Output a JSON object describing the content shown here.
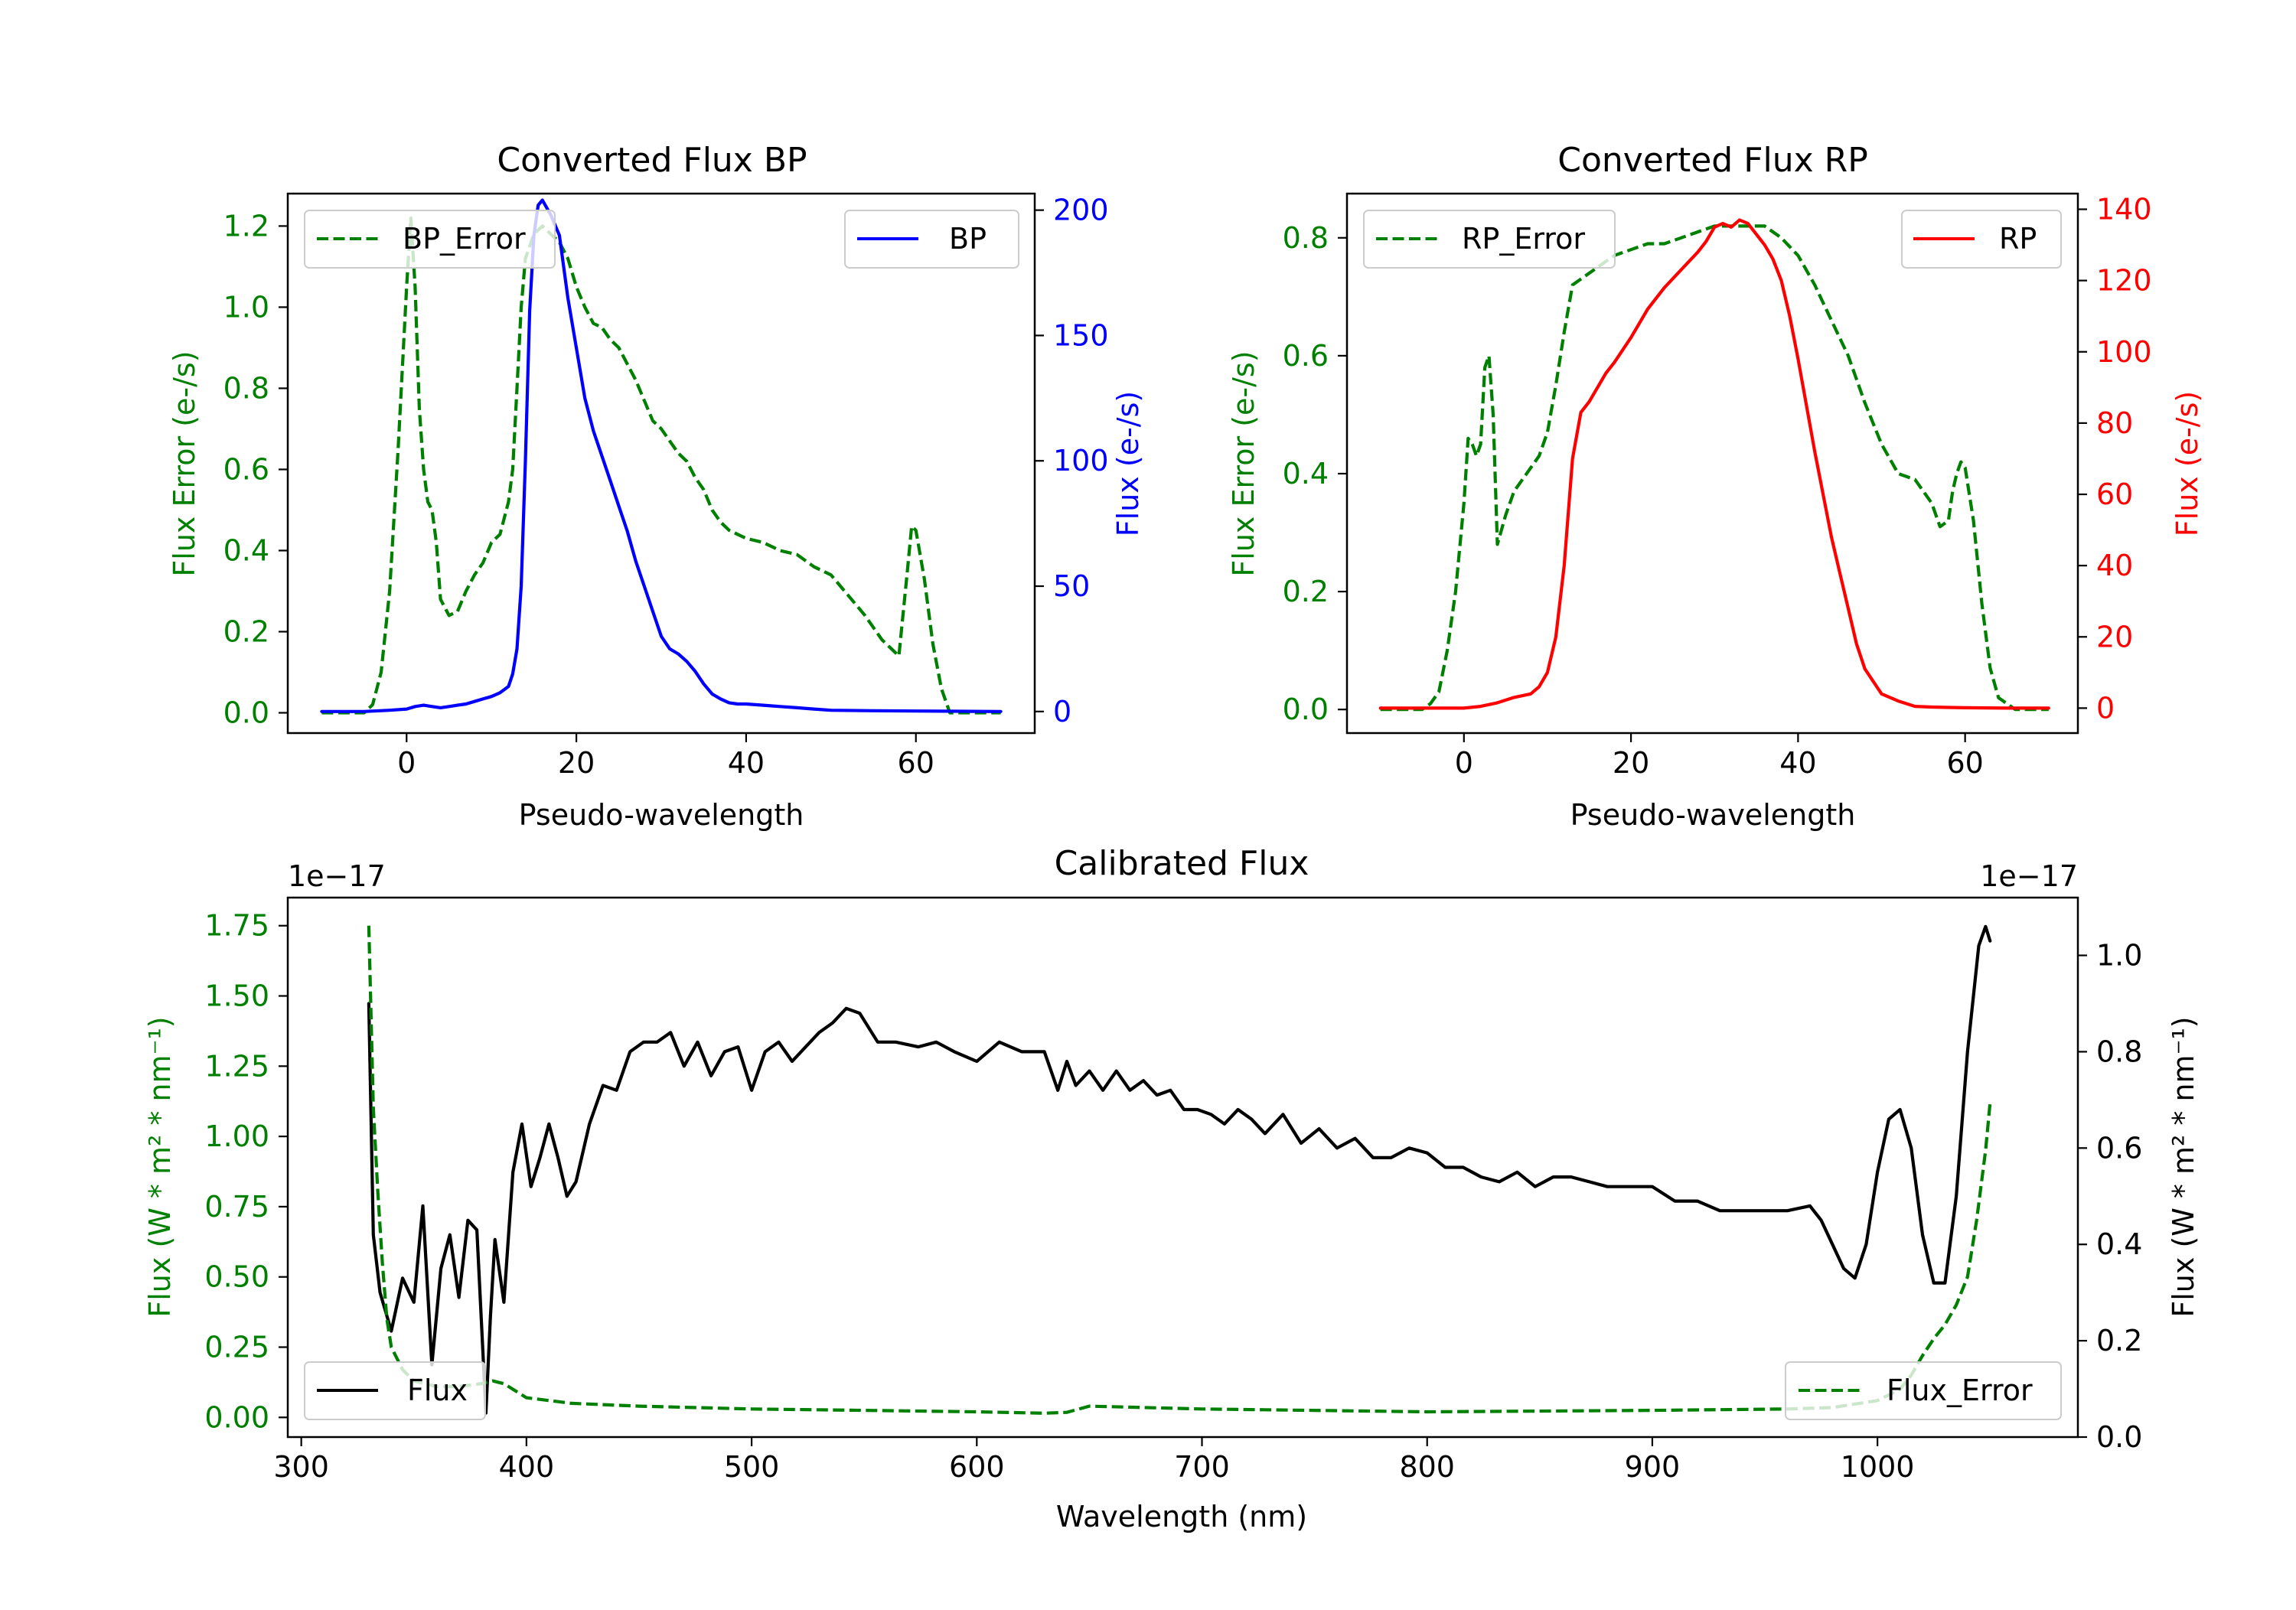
{
  "chart_data": [
    {
      "type": "line",
      "id": "bp",
      "title": "Converted Flux BP",
      "xlabel": "Pseudo-wavelength",
      "ylabel_left": "Flux Error (e-/s)",
      "ylabel_right": "Flux (e-/s)",
      "xlim": [
        -14,
        74
      ],
      "ylim_left": [
        -0.05,
        1.28
      ],
      "ylim_right": [
        -8.6,
        206.6
      ],
      "xticks": [
        0,
        20,
        40,
        60
      ],
      "yticks_left": [
        "0.0",
        "0.2",
        "0.4",
        "0.6",
        "0.8",
        "1.0",
        "1.2"
      ],
      "yticks_right": [
        "0",
        "50",
        "100",
        "150",
        "200"
      ],
      "legend_left": "top-left",
      "legend_right": "top-right",
      "colors": {
        "error": "#008000",
        "flux": "#0000ff"
      },
      "series": [
        {
          "name": "BP_Error",
          "axis": "left",
          "style": "dashed",
          "x": [
            -10,
            -5,
            -4,
            -3,
            -2,
            -1,
            0,
            0.5,
            1,
            1.5,
            2,
            2.5,
            3,
            3.5,
            4,
            5,
            6,
            7,
            8,
            9,
            10,
            11,
            12,
            12.5,
            13,
            13.5,
            14,
            15,
            16,
            17,
            18,
            19,
            20,
            21,
            22,
            23,
            24,
            25,
            26,
            27,
            28,
            29,
            30,
            31,
            32,
            33,
            34,
            35,
            36,
            37,
            38,
            39,
            40,
            42,
            44,
            46,
            48,
            50,
            52,
            54,
            56,
            57,
            58,
            59,
            59.5,
            60,
            61,
            62,
            63,
            64,
            66,
            68,
            70
          ],
          "values": [
            0,
            0,
            0.02,
            0.1,
            0.3,
            0.65,
            1.05,
            1.22,
            1.05,
            0.75,
            0.6,
            0.52,
            0.5,
            0.42,
            0.28,
            0.24,
            0.25,
            0.3,
            0.34,
            0.37,
            0.42,
            0.44,
            0.52,
            0.6,
            0.8,
            1.0,
            1.12,
            1.18,
            1.2,
            1.18,
            1.16,
            1.12,
            1.05,
            1.0,
            0.96,
            0.95,
            0.92,
            0.9,
            0.86,
            0.82,
            0.77,
            0.72,
            0.7,
            0.67,
            0.64,
            0.62,
            0.58,
            0.55,
            0.5,
            0.47,
            0.45,
            0.44,
            0.43,
            0.42,
            0.4,
            0.39,
            0.36,
            0.34,
            0.29,
            0.24,
            0.18,
            0.16,
            0.14,
            0.35,
            0.46,
            0.45,
            0.33,
            0.17,
            0.06,
            0,
            0,
            0,
            0
          ]
        },
        {
          "name": "BP",
          "axis": "right",
          "style": "solid",
          "x": [
            -10,
            -5,
            -2,
            0,
            1,
            2,
            3,
            4,
            5,
            6,
            7,
            8,
            9,
            10,
            11,
            12,
            12.5,
            13,
            13.5,
            14,
            14.5,
            15,
            15.5,
            16,
            17,
            18,
            19,
            20,
            21,
            22,
            23,
            24,
            25,
            26,
            27,
            28,
            29,
            30,
            31,
            32,
            33,
            34,
            35,
            36,
            37,
            38,
            39,
            40,
            42,
            44,
            46,
            48,
            50,
            55,
            60,
            65,
            70
          ],
          "values": [
            0,
            0,
            0.5,
            1,
            2,
            2.5,
            2,
            1.5,
            2,
            2.5,
            3,
            4,
            5,
            6,
            7.5,
            10,
            15,
            25,
            50,
            100,
            160,
            190,
            202,
            204,
            198,
            190,
            165,
            145,
            125,
            112,
            102,
            92,
            82,
            72,
            60,
            50,
            40,
            30,
            25,
            23,
            20,
            16,
            11,
            7,
            5,
            3.5,
            3,
            3,
            2.5,
            2,
            1.5,
            1,
            0.5,
            0.3,
            0.2,
            0.1,
            0
          ]
        }
      ]
    },
    {
      "type": "line",
      "id": "rp",
      "title": "Converted Flux RP",
      "xlabel": "Pseudo-wavelength",
      "ylabel_left": "Flux Error (e-/s)",
      "ylabel_right": "Flux (e-/s)",
      "xlim": [
        -14,
        73.5
      ],
      "ylim_left": [
        -0.04,
        0.875
      ],
      "ylim_right": [
        -7,
        144.4
      ],
      "xticks": [
        0,
        20,
        40,
        60
      ],
      "yticks_left": [
        "0.0",
        "0.2",
        "0.4",
        "0.6",
        "0.8"
      ],
      "yticks_right": [
        "0",
        "20",
        "40",
        "60",
        "80",
        "100",
        "120",
        "140"
      ],
      "legend_left": "top-left",
      "legend_right": "top-right",
      "colors": {
        "error": "#008000",
        "flux": "#ff0000"
      },
      "series": [
        {
          "name": "RP_Error",
          "axis": "left",
          "style": "dashed",
          "x": [
            -10,
            -5,
            -4,
            -3,
            -2,
            -1,
            0,
            0.5,
            1,
            1.5,
            2,
            2.5,
            3,
            3.5,
            4,
            5,
            6,
            7,
            8,
            9,
            10,
            11,
            12,
            13,
            14,
            15,
            16,
            18,
            20,
            22,
            24,
            26,
            28,
            30,
            32,
            34,
            36,
            38,
            40,
            42,
            44,
            46,
            48,
            50,
            52,
            54,
            55,
            56,
            57,
            58,
            58.5,
            59,
            59.5,
            60,
            61,
            62,
            63,
            64,
            66,
            68,
            70
          ],
          "values": [
            0,
            0,
            0.01,
            0.03,
            0.1,
            0.2,
            0.35,
            0.46,
            0.45,
            0.43,
            0.45,
            0.58,
            0.6,
            0.5,
            0.28,
            0.33,
            0.37,
            0.39,
            0.41,
            0.43,
            0.47,
            0.55,
            0.64,
            0.72,
            0.73,
            0.74,
            0.75,
            0.77,
            0.78,
            0.79,
            0.79,
            0.8,
            0.81,
            0.82,
            0.82,
            0.82,
            0.82,
            0.8,
            0.77,
            0.72,
            0.66,
            0.6,
            0.52,
            0.45,
            0.4,
            0.39,
            0.37,
            0.35,
            0.31,
            0.32,
            0.37,
            0.4,
            0.42,
            0.41,
            0.32,
            0.18,
            0.07,
            0.02,
            0,
            0,
            0
          ]
        },
        {
          "name": "RP",
          "axis": "right",
          "style": "solid",
          "x": [
            -10,
            -5,
            0,
            2,
            4,
            6,
            8,
            9,
            10,
            11,
            12,
            13,
            14,
            15,
            16,
            17,
            18,
            20,
            22,
            24,
            26,
            28,
            29,
            30,
            31,
            32,
            33,
            34,
            35,
            36,
            37,
            38,
            39,
            40,
            41,
            42,
            43,
            44,
            45,
            46,
            47,
            48,
            50,
            52,
            54,
            56,
            58,
            60,
            65,
            70
          ],
          "values": [
            0,
            0,
            0,
            0.5,
            1.5,
            3,
            4,
            6,
            10,
            20,
            40,
            70,
            83,
            86,
            90,
            94,
            97,
            104,
            112,
            118,
            123,
            128,
            131,
            135,
            136,
            135,
            137,
            136,
            133,
            130,
            126,
            120,
            110,
            98,
            85,
            72,
            60,
            48,
            38,
            28,
            18,
            11,
            4,
            2,
            0.5,
            0.3,
            0.2,
            0.1,
            0,
            0
          ]
        }
      ]
    },
    {
      "type": "line",
      "id": "calibrated",
      "title": "Calibrated Flux",
      "xlabel": "Wavelength (nm)",
      "ylabel_left": "Flux (W * m² * nm⁻¹)",
      "ylabel_right": "Flux (W * m² * nm⁻¹)",
      "offset_left": "1e−17",
      "offset_right": "1e−17",
      "xlim": [
        294,
        1089
      ],
      "ylim_left": [
        -0.07,
        1.85
      ],
      "ylim_right": [
        0,
        1.12
      ],
      "xticks": [
        300,
        400,
        500,
        600,
        700,
        800,
        900,
        1000
      ],
      "yticks_left": [
        "0.00",
        "0.25",
        "0.50",
        "0.75",
        "1.00",
        "1.25",
        "1.50",
        "1.75"
      ],
      "yticks_right": [
        "0.0",
        "0.2",
        "0.4",
        "0.6",
        "0.8",
        "1.0"
      ],
      "legend_left": "bottom-left",
      "legend_right": "bottom-right",
      "colors": {
        "error": "#008000",
        "flux": "#000000"
      },
      "series": [
        {
          "name": "Flux",
          "axis": "right",
          "style": "solid",
          "x": [
            330,
            332,
            335,
            340,
            345,
            350,
            354,
            358,
            362,
            366,
            370,
            374,
            378,
            382,
            384,
            386,
            390,
            394,
            398,
            402,
            406,
            410,
            414,
            418,
            422,
            428,
            434,
            440,
            446,
            452,
            458,
            464,
            470,
            476,
            482,
            488,
            494,
            500,
            506,
            512,
            518,
            524,
            530,
            536,
            542,
            548,
            556,
            564,
            574,
            582,
            590,
            600,
            610,
            620,
            630,
            636,
            640,
            644,
            650,
            656,
            662,
            668,
            674,
            680,
            686,
            692,
            698,
            704,
            710,
            716,
            722,
            728,
            736,
            744,
            752,
            760,
            768,
            776,
            784,
            792,
            800,
            808,
            816,
            824,
            832,
            840,
            848,
            856,
            864,
            872,
            880,
            890,
            900,
            910,
            920,
            930,
            940,
            950,
            960,
            970,
            975,
            980,
            985,
            990,
            995,
            1000,
            1005,
            1010,
            1015,
            1020,
            1025,
            1030,
            1035,
            1040,
            1045,
            1048,
            1050
          ],
          "values": [
            0.9,
            0.42,
            0.3,
            0.22,
            0.33,
            0.28,
            0.48,
            0.15,
            0.35,
            0.42,
            0.29,
            0.45,
            0.43,
            0.05,
            0.25,
            0.41,
            0.28,
            0.55,
            0.65,
            0.52,
            0.58,
            0.65,
            0.58,
            0.5,
            0.53,
            0.65,
            0.73,
            0.72,
            0.8,
            0.82,
            0.82,
            0.84,
            0.77,
            0.82,
            0.75,
            0.8,
            0.81,
            0.72,
            0.8,
            0.82,
            0.78,
            0.81,
            0.84,
            0.86,
            0.89,
            0.88,
            0.82,
            0.82,
            0.81,
            0.82,
            0.8,
            0.78,
            0.82,
            0.8,
            0.8,
            0.72,
            0.78,
            0.73,
            0.76,
            0.72,
            0.76,
            0.72,
            0.74,
            0.71,
            0.72,
            0.68,
            0.68,
            0.67,
            0.65,
            0.68,
            0.66,
            0.63,
            0.67,
            0.61,
            0.64,
            0.6,
            0.62,
            0.58,
            0.58,
            0.6,
            0.59,
            0.56,
            0.56,
            0.54,
            0.53,
            0.55,
            0.52,
            0.54,
            0.54,
            0.53,
            0.52,
            0.52,
            0.52,
            0.49,
            0.49,
            0.47,
            0.47,
            0.47,
            0.47,
            0.48,
            0.45,
            0.4,
            0.35,
            0.33,
            0.4,
            0.55,
            0.66,
            0.68,
            0.6,
            0.42,
            0.32,
            0.32,
            0.5,
            0.8,
            1.02,
            1.06,
            1.03
          ]
        },
        {
          "name": "Flux_Error",
          "axis": "left",
          "style": "dashed",
          "x": [
            330,
            332,
            334,
            336,
            338,
            340,
            345,
            350,
            360,
            370,
            380,
            385,
            390,
            400,
            420,
            450,
            500,
            550,
            600,
            630,
            640,
            650,
            700,
            800,
            900,
            960,
            980,
            1000,
            1010,
            1015,
            1020,
            1025,
            1030,
            1035,
            1040,
            1044,
            1048,
            1050
          ],
          "values": [
            1.75,
            1.1,
            0.8,
            0.55,
            0.35,
            0.25,
            0.17,
            0.13,
            0.11,
            0.11,
            0.12,
            0.13,
            0.12,
            0.07,
            0.05,
            0.04,
            0.03,
            0.025,
            0.02,
            0.015,
            0.018,
            0.04,
            0.03,
            0.02,
            0.025,
            0.03,
            0.035,
            0.06,
            0.1,
            0.15,
            0.22,
            0.28,
            0.33,
            0.4,
            0.5,
            0.7,
            0.95,
            1.12
          ]
        }
      ]
    }
  ]
}
